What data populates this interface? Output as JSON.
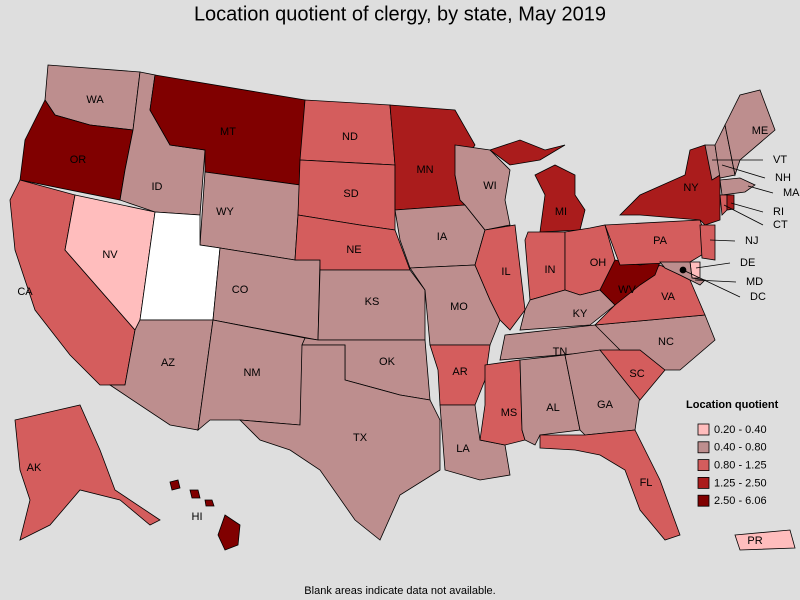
{
  "title": "Location quotient of clergy, by state, May 2019",
  "legend": {
    "title": "Location quotient",
    "items": [
      {
        "label": "0.20 - 0.40",
        "color": "#ffbdbd"
      },
      {
        "label": "0.40 - 0.80",
        "color": "#bd8e8e"
      },
      {
        "label": "0.80 - 1.25",
        "color": "#d45d5d"
      },
      {
        "label": "1.25 - 2.50",
        "color": "#aa1c1c"
      },
      {
        "label": "2.50 - 6.06",
        "color": "#800000"
      }
    ]
  },
  "states": [
    {
      "label": "WA",
      "color": "#bd8e8e"
    },
    {
      "label": "OR",
      "color": "#800000"
    },
    {
      "label": "CA",
      "color": "#d45d5d"
    },
    {
      "label": "NV",
      "color": "#ffbdbd"
    },
    {
      "label": "ID",
      "color": "#bd8e8e"
    },
    {
      "label": "MT",
      "color": "#800000"
    },
    {
      "label": "WY",
      "color": "#bd8e8e"
    },
    {
      "label": null,
      "color": "#ffffff"
    },
    {
      "label": "CO",
      "color": "#bd8e8e"
    },
    {
      "label": "AZ",
      "color": "#bd8e8e"
    },
    {
      "label": "NM",
      "color": "#bd8e8e"
    },
    {
      "label": "ND",
      "color": "#d45d5d"
    },
    {
      "label": "SD",
      "color": "#d45d5d"
    },
    {
      "label": "NE",
      "color": "#d45d5d"
    },
    {
      "label": "KS",
      "color": "#bd8e8e"
    },
    {
      "label": "OK",
      "color": "#bd8e8e"
    },
    {
      "label": "TX",
      "color": "#bd8e8e"
    },
    {
      "label": "MN",
      "color": "#aa1c1c"
    },
    {
      "label": "IA",
      "color": "#bd8e8e"
    },
    {
      "label": "MO",
      "color": "#bd8e8e"
    },
    {
      "label": "AR",
      "color": "#d45d5d"
    },
    {
      "label": "LA",
      "color": "#bd8e8e"
    },
    {
      "label": "WI",
      "color": "#bd8e8e"
    },
    {
      "label": "IL",
      "color": "#d45d5d"
    },
    {
      "label": "MI",
      "color": "#aa1c1c"
    },
    {
      "label": "IN",
      "color": "#d45d5d"
    },
    {
      "label": "OH",
      "color": "#d45d5d"
    },
    {
      "label": "KY",
      "color": "#bd8e8e"
    },
    {
      "label": "TN",
      "color": "#bd8e8e"
    },
    {
      "label": "MS",
      "color": "#d45d5d"
    },
    {
      "label": "AL",
      "color": "#bd8e8e"
    },
    {
      "label": "GA",
      "color": "#bd8e8e"
    },
    {
      "label": "FL",
      "color": "#d45d5d"
    },
    {
      "label": "SC",
      "color": "#d45d5d"
    },
    {
      "label": "NC",
      "color": "#bd8e8e"
    },
    {
      "label": "VA",
      "color": "#d45d5d"
    },
    {
      "label": "WV",
      "color": "#800000"
    },
    {
      "label": "PA",
      "color": "#d45d5d"
    },
    {
      "label": "NY",
      "color": "#aa1c1c"
    },
    {
      "label": "VT",
      "color": "#bd8e8e"
    },
    {
      "label": "NH",
      "color": "#bd8e8e"
    },
    {
      "label": "ME",
      "color": "#bd8e8e"
    },
    {
      "label": "MA",
      "color": "#bd8e8e"
    },
    {
      "label": "CT",
      "color": "#d45d5d"
    },
    {
      "label": "RI",
      "color": "#aa1c1c"
    },
    {
      "label": "NJ",
      "color": "#d45d5d"
    },
    {
      "label": "DE",
      "color": "#ffbdbd"
    },
    {
      "label": "MD",
      "color": "#bd8e8e"
    },
    {
      "label": "DC",
      "color": "#000000"
    },
    {
      "label": "AK",
      "color": "#d45d5d"
    },
    {
      "label": "HI",
      "color": "#800000"
    },
    {
      "label": "PR",
      "color": "#ffbdbd"
    }
  ],
  "footnote": "Blank areas indicate data not available."
}
